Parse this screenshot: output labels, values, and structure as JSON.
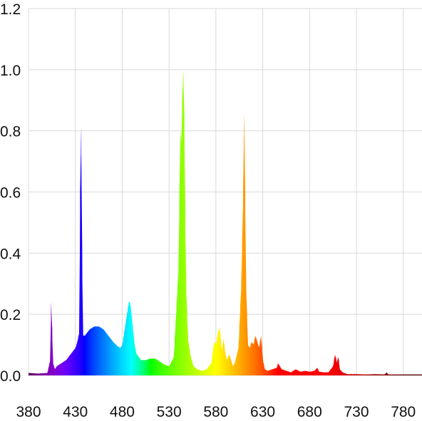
{
  "chart_data": {
    "type": "area",
    "title": "",
    "xlabel": "",
    "ylabel": "",
    "xlim": [
      380,
      800
    ],
    "ylim": [
      0,
      1.2
    ],
    "grid": true,
    "legend": "none",
    "x_ticks": [
      "380",
      "430",
      "480",
      "530",
      "580",
      "630",
      "680",
      "730",
      "780"
    ],
    "y_ticks": [
      "0.0",
      "0.2",
      "0.4",
      "0.6",
      "0.8",
      "1.0",
      "1.2"
    ],
    "color_mapping": "visible spectrum by wavelength",
    "x": [
      380,
      390,
      400,
      403,
      404,
      405,
      406,
      408,
      410,
      420,
      430,
      432,
      434,
      435,
      436,
      437,
      438,
      440,
      445,
      450,
      455,
      460,
      465,
      470,
      475,
      478,
      480,
      482,
      485,
      487,
      488,
      489,
      491,
      493,
      495,
      500,
      505,
      510,
      515,
      520,
      525,
      530,
      535,
      540,
      541,
      542,
      543,
      544,
      545,
      546,
      547,
      548,
      550,
      553,
      556,
      560,
      565,
      570,
      575,
      578,
      580,
      582,
      584,
      586,
      588,
      590,
      592,
      594,
      596,
      598,
      600,
      604,
      607,
      609,
      610,
      611,
      612,
      614,
      616,
      618,
      620,
      622,
      624,
      626,
      628,
      630,
      632,
      635,
      640,
      645,
      646,
      648,
      650,
      655,
      660,
      665,
      670,
      675,
      680,
      685,
      688,
      690,
      695,
      700,
      705,
      706,
      707,
      708,
      709,
      710,
      711,
      712,
      715,
      720,
      730,
      740,
      750,
      760,
      762,
      764,
      770,
      780,
      790,
      800
    ],
    "values": [
      0.008,
      0.006,
      0.008,
      0.05,
      0.24,
      0.15,
      0.04,
      0.02,
      0.03,
      0.05,
      0.09,
      0.11,
      0.14,
      0.6,
      0.81,
      0.4,
      0.13,
      0.13,
      0.15,
      0.16,
      0.16,
      0.15,
      0.13,
      0.11,
      0.095,
      0.09,
      0.1,
      0.14,
      0.2,
      0.24,
      0.24,
      0.22,
      0.16,
      0.1,
      0.07,
      0.05,
      0.05,
      0.055,
      0.055,
      0.045,
      0.035,
      0.03,
      0.06,
      0.35,
      0.6,
      0.8,
      0.75,
      0.9,
      1.0,
      0.85,
      0.55,
      0.3,
      0.12,
      0.06,
      0.03,
      0.02,
      0.015,
      0.02,
      0.04,
      0.11,
      0.1,
      0.14,
      0.155,
      0.08,
      0.12,
      0.07,
      0.05,
      0.07,
      0.05,
      0.03,
      0.04,
      0.09,
      0.3,
      0.6,
      0.86,
      0.6,
      0.3,
      0.1,
      0.09,
      0.11,
      0.1,
      0.13,
      0.11,
      0.09,
      0.13,
      0.05,
      0.02,
      0.015,
      0.02,
      0.025,
      0.04,
      0.03,
      0.02,
      0.015,
      0.01,
      0.02,
      0.012,
      0.015,
      0.012,
      0.015,
      0.025,
      0.012,
      0.01,
      0.01,
      0.03,
      0.05,
      0.068,
      0.055,
      0.04,
      0.06,
      0.05,
      0.02,
      0.01,
      0.004,
      0.004,
      0.003,
      0.004,
      0.003,
      0.01,
      0.003,
      0.003,
      0.003,
      0.003,
      0.003
    ]
  }
}
